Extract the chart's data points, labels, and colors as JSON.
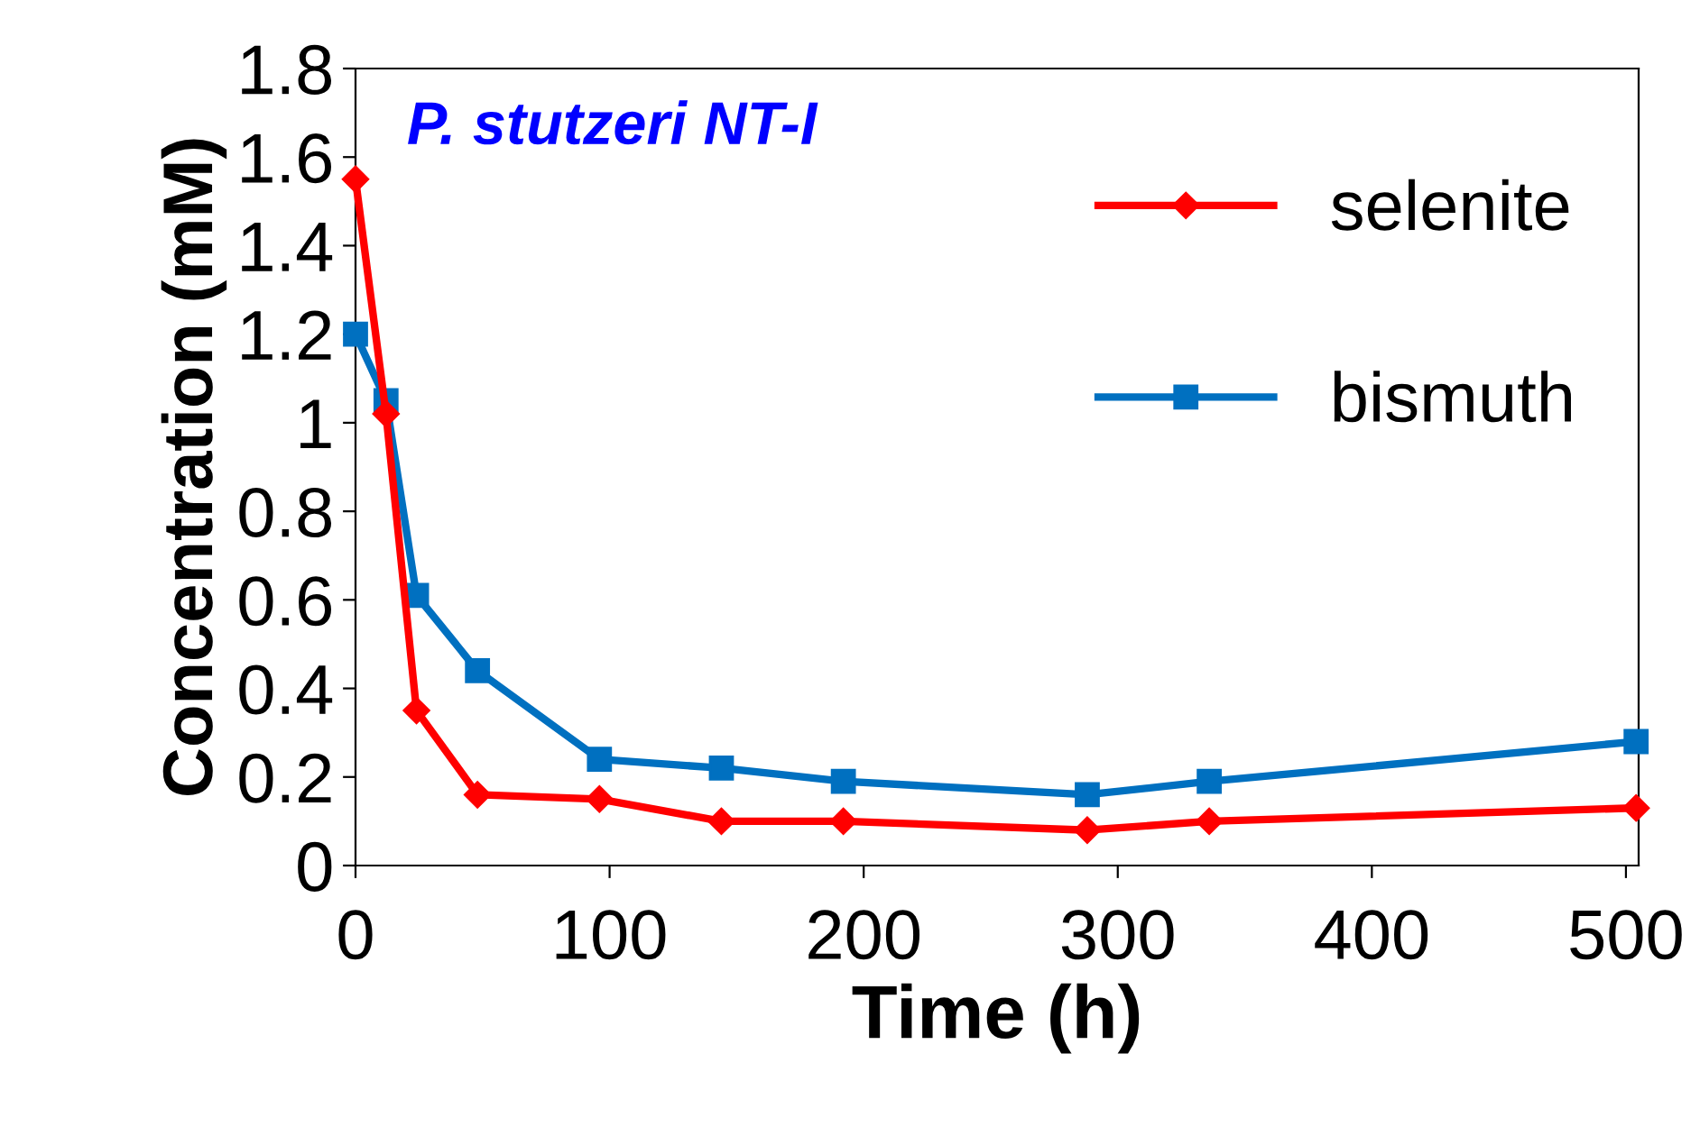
{
  "chart_data": {
    "type": "line",
    "xlabel": "Time (h)",
    "ylabel": "Concentration (mM)",
    "annotations": [
      "P. stutzeri NT-I"
    ],
    "xlim": [
      0,
      505
    ],
    "xticks": [
      0,
      100,
      200,
      300,
      400,
      500
    ],
    "ylim": [
      0,
      1.8
    ],
    "yticks": [
      0,
      0.2,
      0.4,
      0.6,
      0.8,
      1,
      1.2,
      1.4,
      1.6,
      1.8
    ],
    "grid": false,
    "legend": "right",
    "line_style": "solid",
    "series": [
      {
        "name": "selenite",
        "color": "#ff0000",
        "marker": "diamond",
        "x": [
          0,
          12,
          24,
          48,
          96,
          144,
          192,
          288,
          336,
          504
        ],
        "values": [
          1.55,
          1.02,
          0.35,
          0.16,
          0.15,
          0.1,
          0.1,
          0.08,
          0.1,
          0.13
        ]
      },
      {
        "name": "bismuth",
        "color": "#0070c0",
        "marker": "square",
        "x": [
          0,
          12,
          24,
          48,
          96,
          144,
          192,
          288,
          336,
          504
        ],
        "values": [
          1.2,
          1.05,
          0.61,
          0.44,
          0.24,
          0.22,
          0.19,
          0.16,
          0.19,
          0.28
        ]
      }
    ]
  }
}
